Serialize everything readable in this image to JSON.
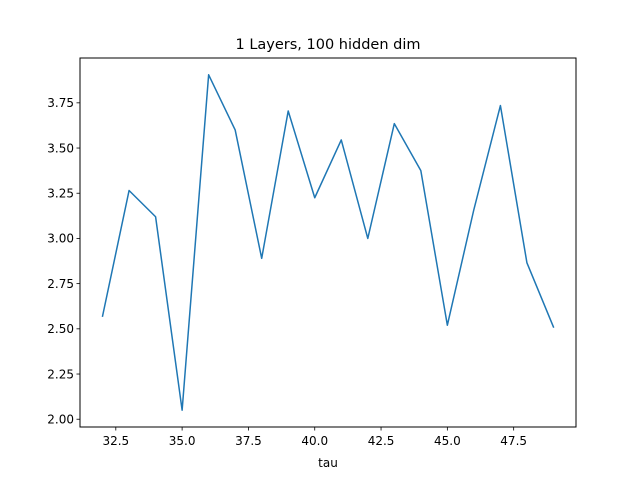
{
  "chart_data": {
    "type": "line",
    "title": "1 Layers, 100 hidden dim",
    "xlabel": "tau",
    "ylabel": "",
    "x": [
      32,
      33,
      34,
      35,
      36,
      37,
      38,
      39,
      40,
      41,
      42,
      43,
      44,
      45,
      46,
      47,
      48,
      49
    ],
    "series": [
      {
        "color": "#1f77b4",
        "values": [
          2.57,
          3.265,
          3.12,
          2.05,
          3.905,
          3.6,
          2.89,
          3.705,
          3.225,
          3.545,
          3.0,
          3.635,
          3.375,
          2.52,
          3.16,
          3.735,
          2.865,
          2.51
        ]
      }
    ],
    "xlim": [
      31.15,
      49.85
    ],
    "ylim": [
      1.957,
      3.998
    ],
    "xticks": [
      "32.5",
      "35.0",
      "37.5",
      "40.0",
      "42.5",
      "45.0",
      "47.5"
    ],
    "yticks": [
      "2.00",
      "2.25",
      "2.50",
      "2.75",
      "3.00",
      "3.25",
      "3.50",
      "3.75"
    ],
    "grid": false,
    "legend": "none"
  }
}
